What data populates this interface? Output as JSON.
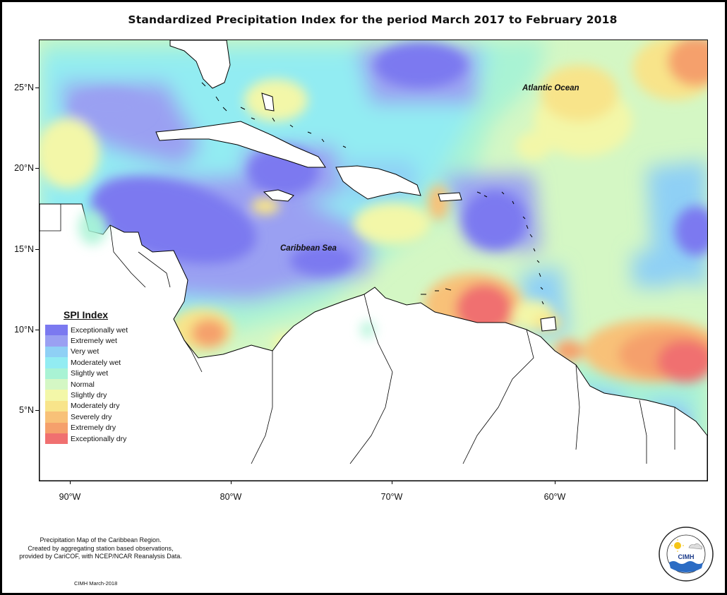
{
  "title": "Standardized Precipitation Index for the period March 2017 to February 2018",
  "labels": {
    "atlantic": "Atlantic Ocean",
    "caribbean": "Caribbean Sea"
  },
  "axes": {
    "y_ticks": [
      "25°N",
      "20°N",
      "15°N",
      "10°N",
      "5°N"
    ],
    "x_ticks": [
      "90°W",
      "80°W",
      "70°W",
      "60°W"
    ]
  },
  "legend": {
    "title": "SPI Index",
    "items": [
      {
        "label": "Exceptionally wet",
        "color": "#7b79f0"
      },
      {
        "label": "Extremely wet",
        "color": "#9aa0f2"
      },
      {
        "label": "Very wet",
        "color": "#8fd0f5"
      },
      {
        "label": "Moderately wet",
        "color": "#92ecf2"
      },
      {
        "label": "Slightly wet",
        "color": "#a9f3d4"
      },
      {
        "label": "Normal",
        "color": "#d4f7c4"
      },
      {
        "label": "Slightly dry",
        "color": "#f3f7a8"
      },
      {
        "label": "Moderately dry",
        "color": "#f8e48a"
      },
      {
        "label": "Severely dry",
        "color": "#f8c178"
      },
      {
        "label": "Extremely dry",
        "color": "#f5a06c"
      },
      {
        "label": "Exceptionally dry",
        "color": "#f07070"
      }
    ]
  },
  "footer": {
    "line1": "Precipitation Map of the Caribbean Region.",
    "line2": "Created by aggregating station based observations,",
    "line3": "provided by CariCOF, with NCEP/NCAR Reanalysis Data.",
    "credit": "CIMH March-2018"
  },
  "logo": {
    "text": "CIMH",
    "ring_text": "Caribbean Institute for Meteorology and Hydrology"
  }
}
